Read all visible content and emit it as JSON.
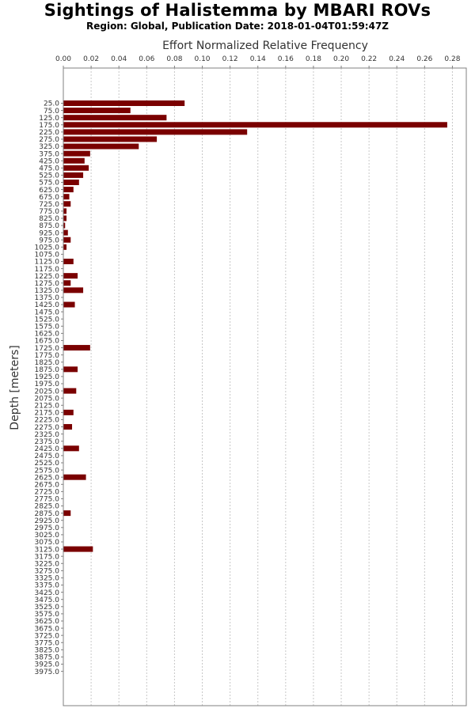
{
  "chart_data": {
    "type": "bar",
    "orientation": "horizontal",
    "title": "Sightings of Halistemma by MBARI ROVs",
    "subtitle": "Region: Global, Publication Date: 2018-01-04T01:59:47Z",
    "xlabel": "Effort Normalized Relative Frequency",
    "ylabel": "Depth [meters]",
    "xlim": [
      0,
      0.29
    ],
    "xticks": [
      "0.00",
      "0.02",
      "0.04",
      "0.06",
      "0.08",
      "0.10",
      "0.12",
      "0.14",
      "0.16",
      "0.18",
      "0.20",
      "0.22",
      "0.24",
      "0.26",
      "0.28"
    ],
    "x_axis_position": "top",
    "grid": "vertical dashed",
    "bar_color": "#7a0000",
    "categories": [
      "25.0",
      "75.0",
      "125.0",
      "175.0",
      "225.0",
      "275.0",
      "325.0",
      "375.0",
      "425.0",
      "475.0",
      "525.0",
      "575.0",
      "625.0",
      "675.0",
      "725.0",
      "775.0",
      "825.0",
      "875.0",
      "925.0",
      "975.0",
      "1025.0",
      "1075.0",
      "1125.0",
      "1175.0",
      "1225.0",
      "1275.0",
      "1325.0",
      "1375.0",
      "1425.0",
      "1475.0",
      "1525.0",
      "1575.0",
      "1625.0",
      "1675.0",
      "1725.0",
      "1775.0",
      "1825.0",
      "1875.0",
      "1925.0",
      "1975.0",
      "2025.0",
      "2075.0",
      "2125.0",
      "2175.0",
      "2225.0",
      "2275.0",
      "2325.0",
      "2375.0",
      "2425.0",
      "2475.0",
      "2525.0",
      "2575.0",
      "2625.0",
      "2675.0",
      "2725.0",
      "2775.0",
      "2825.0",
      "2875.0",
      "2925.0",
      "2975.0",
      "3025.0",
      "3075.0",
      "3125.0",
      "3175.0",
      "3225.0",
      "3275.0",
      "3325.0",
      "3375.0",
      "3425.0",
      "3475.0",
      "3525.0",
      "3575.0",
      "3625.0",
      "3675.0",
      "3725.0",
      "3775.0",
      "3825.0",
      "3875.0",
      "3925.0",
      "3975.0"
    ],
    "values": [
      0.087,
      0.048,
      0.074,
      0.276,
      0.132,
      0.067,
      0.054,
      0.019,
      0.015,
      0.018,
      0.014,
      0.011,
      0.007,
      0.004,
      0.005,
      0.002,
      0.002,
      0.001,
      0.003,
      0.005,
      0.002,
      0,
      0.007,
      0,
      0.01,
      0.005,
      0.014,
      0,
      0.008,
      0,
      0,
      0,
      0,
      0,
      0.019,
      0,
      0,
      0.01,
      0,
      0,
      0.009,
      0,
      0,
      0.007,
      0,
      0.006,
      0,
      0,
      0.011,
      0,
      0,
      0,
      0.016,
      0,
      0,
      0,
      0,
      0.005,
      0,
      0,
      0,
      0,
      0.021,
      0,
      0,
      0,
      0,
      0,
      0,
      0,
      0,
      0,
      0,
      0,
      0,
      0,
      0,
      0,
      0,
      0
    ]
  }
}
